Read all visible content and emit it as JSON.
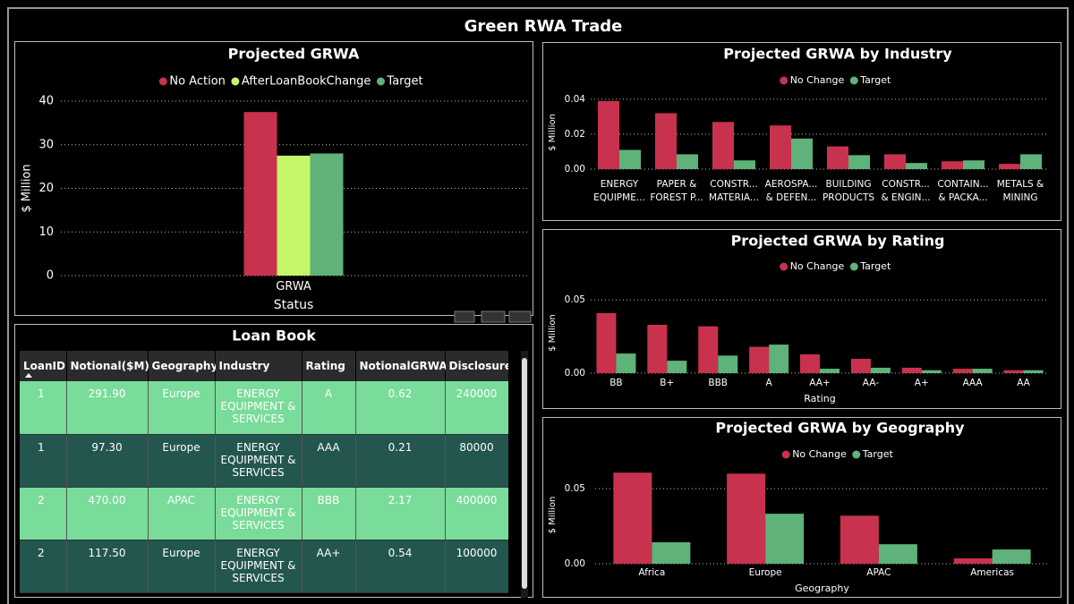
{
  "title": "Green RWA Trade",
  "chart_data": [
    {
      "type": "bar",
      "title": "Projected GRWA",
      "y_label": "$ Million",
      "x_label": "Status",
      "categories": [
        "GRWA"
      ],
      "series": [
        {
          "name": "No Action",
          "color": "#c8324e",
          "values": [
            37.5
          ]
        },
        {
          "name": "AfterLoanBookChange",
          "color": "#c6f56a",
          "values": [
            27.5
          ]
        },
        {
          "name": "Target",
          "color": "#5fb27a",
          "values": [
            28
          ]
        }
      ],
      "ylim": [
        0,
        40
      ],
      "yticks": [
        0,
        10,
        20,
        30,
        40
      ],
      "grid": true
    },
    {
      "type": "bar",
      "title": "Projected GRWA by Industry",
      "y_label": "$ Million",
      "categories": [
        "ENERGY EQUIPME...",
        "PAPER & FOREST P...",
        "CONSTR... MATERIA...",
        "AEROSPA... & DEFEN...",
        "BUILDING PRODUCTS",
        "CONSTR... & ENGIN...",
        "CONTAIN... & PACKA...",
        "METALS & MINING"
      ],
      "series": [
        {
          "name": "No Change",
          "color": "#c8324e",
          "values": [
            0.039,
            0.032,
            0.027,
            0.025,
            0.013,
            0.0085,
            0.0045,
            0.003
          ]
        },
        {
          "name": "Target",
          "color": "#5fb27a",
          "values": [
            0.011,
            0.0085,
            0.005,
            0.0175,
            0.008,
            0.0035,
            0.005,
            0.0085
          ]
        }
      ],
      "ylim": [
        0,
        0.042
      ],
      "yticks": [
        {
          "value": 0,
          "label": "0.00"
        },
        {
          "value": 0.02,
          "label": "0.02"
        },
        {
          "value": 0.04,
          "label": "0.04"
        }
      ],
      "grid": true
    },
    {
      "type": "bar",
      "title": "Projected GRWA by Rating",
      "y_label": "$ Million",
      "x_label": "Rating",
      "categories": [
        "BB",
        "B+",
        "BBB",
        "A",
        "AA+",
        "AA-",
        "A+",
        "AAA",
        "AA"
      ],
      "series": [
        {
          "name": "No Change",
          "color": "#c8324e",
          "values": [
            0.041,
            0.033,
            0.032,
            0.018,
            0.0128,
            0.0098,
            0.0037,
            0.003,
            0.002
          ]
        },
        {
          "name": "Target",
          "color": "#5fb27a",
          "values": [
            0.0134,
            0.0085,
            0.012,
            0.0195,
            0.003,
            0.0037,
            0.002,
            0.003,
            0.002
          ]
        }
      ],
      "ylim": [
        0,
        0.055
      ],
      "yticks": [
        {
          "value": 0,
          "label": "0.00"
        },
        {
          "value": 0.05,
          "label": "0.05"
        }
      ],
      "grid": true
    },
    {
      "type": "bar",
      "title": "Projected GRWA by Geography",
      "y_label": "$ Million",
      "x_label": "Geography",
      "categories": [
        "Africa",
        "Europe",
        "APAC",
        "Americas"
      ],
      "series": [
        {
          "name": "No Change",
          "color": "#c8324e",
          "values": [
            0.0607,
            0.06,
            0.032,
            0.0036
          ]
        },
        {
          "name": "Target",
          "color": "#5fb27a",
          "values": [
            0.0143,
            0.0333,
            0.013,
            0.0095
          ]
        }
      ],
      "ylim": [
        0,
        0.065
      ],
      "yticks": [
        {
          "value": 0,
          "label": "0.00"
        },
        {
          "value": 0.05,
          "label": "0.05"
        }
      ],
      "grid": true
    }
  ],
  "table": {
    "title": "Loan Book",
    "columns": [
      "LoanID",
      "Notional($M)",
      "Geography",
      "Industry",
      "Rating",
      "NotionalGRWA",
      "Disclosure"
    ],
    "rows": [
      [
        "1",
        "291.90",
        "Europe",
        "ENERGY EQUIPMENT & SERVICES",
        "A",
        "0.62",
        "240000"
      ],
      [
        "1",
        "97.30",
        "Europe",
        "ENERGY EQUIPMENT & SERVICES",
        "AAA",
        "0.21",
        "80000"
      ],
      [
        "2",
        "470.00",
        "APAC",
        "ENERGY EQUIPMENT & SERVICES",
        "BBB",
        "2.17",
        "400000"
      ],
      [
        "2",
        "117.50",
        "Europe",
        "ENERGY EQUIPMENT & SERVICES",
        "AA+",
        "0.54",
        "100000"
      ]
    ]
  }
}
